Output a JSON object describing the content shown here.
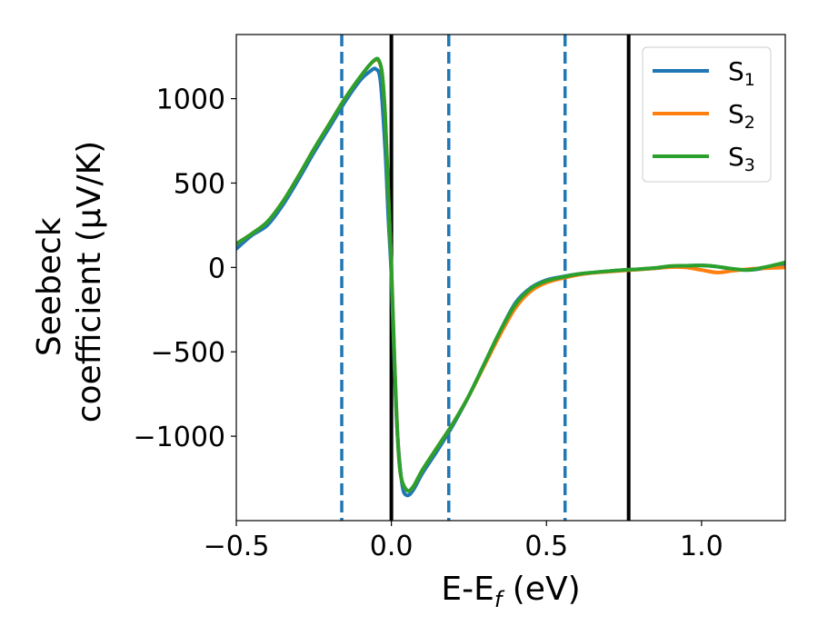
{
  "chart_data": {
    "type": "line",
    "xlabel_main": "E-E",
    "xlabel_sub": "f",
    "xlabel_unit": " (eV)",
    "ylabel_line1": "Seebeck",
    "ylabel_line2": "coefficient  (μV/K)",
    "xlim": [
      -0.5,
      1.27
    ],
    "ylim": [
      -1500,
      1380
    ],
    "x_ticks": [
      -0.5,
      0.0,
      0.5,
      1.0
    ],
    "x_tick_labels": [
      "−0.5",
      "0.0",
      "0.5",
      "1.0"
    ],
    "y_ticks": [
      1000,
      500,
      0,
      -500,
      -1000
    ],
    "y_tick_labels": [
      "1000",
      "500",
      "0",
      "−500",
      "−1000"
    ],
    "grid": false,
    "legend_position": "top-right",
    "vertical_lines": [
      {
        "x": -0.16,
        "style": "dashed",
        "color": "#1f77b4"
      },
      {
        "x": 0.0,
        "style": "solid",
        "color": "#000000"
      },
      {
        "x": 0.185,
        "style": "dashed",
        "color": "#1f77b4"
      },
      {
        "x": 0.56,
        "style": "dashed",
        "color": "#1f77b4"
      },
      {
        "x": 0.765,
        "style": "solid",
        "color": "#000000"
      }
    ],
    "series": [
      {
        "name": "S",
        "subscript": "1",
        "color": "#1f77b4",
        "x": [
          -0.5,
          -0.45,
          -0.4,
          -0.35,
          -0.3,
          -0.25,
          -0.2,
          -0.15,
          -0.1,
          -0.07,
          -0.05,
          -0.035,
          -0.02,
          -0.01,
          0.0,
          0.01,
          0.02,
          0.035,
          0.05,
          0.07,
          0.1,
          0.15,
          0.2,
          0.25,
          0.3,
          0.35,
          0.4,
          0.45,
          0.5,
          0.55,
          0.6,
          0.65,
          0.7,
          0.75,
          0.8,
          0.85,
          0.9,
          0.95,
          1.0,
          1.05,
          1.1,
          1.15,
          1.2,
          1.27
        ],
        "y": [
          110,
          190,
          250,
          370,
          520,
          680,
          830,
          980,
          1110,
          1160,
          1175,
          1100,
          700,
          300,
          -50,
          -600,
          -1000,
          -1290,
          -1350,
          -1320,
          -1220,
          -1080,
          -930,
          -760,
          -570,
          -380,
          -210,
          -120,
          -75,
          -55,
          -40,
          -30,
          -22,
          -15,
          -10,
          -5,
          5,
          10,
          12,
          5,
          -10,
          -15,
          -5,
          20
        ]
      },
      {
        "name": "S",
        "subscript": "2",
        "color": "#ff7f0e",
        "x": [
          -0.5,
          -0.45,
          -0.4,
          -0.35,
          -0.3,
          -0.25,
          -0.2,
          -0.15,
          -0.1,
          -0.07,
          -0.05,
          -0.04,
          -0.03,
          -0.02,
          -0.01,
          0.0,
          0.01,
          0.02,
          0.03,
          0.05,
          0.07,
          0.1,
          0.15,
          0.2,
          0.25,
          0.3,
          0.35,
          0.4,
          0.45,
          0.5,
          0.55,
          0.6,
          0.65,
          0.7,
          0.75,
          0.8,
          0.85,
          0.9,
          0.95,
          1.0,
          1.05,
          1.1,
          1.15,
          1.2,
          1.27
        ],
        "y": [
          140,
          200,
          270,
          390,
          540,
          700,
          850,
          1000,
          1130,
          1200,
          1230,
          1220,
          1150,
          900,
          450,
          0,
          -550,
          -1000,
          -1230,
          -1320,
          -1300,
          -1200,
          -1060,
          -920,
          -760,
          -580,
          -400,
          -240,
          -140,
          -90,
          -65,
          -45,
          -32,
          -25,
          -18,
          -12,
          -5,
          2,
          0,
          -15,
          -30,
          -20,
          -10,
          -5,
          0
        ]
      },
      {
        "name": "S",
        "subscript": "3",
        "color": "#2ca02c",
        "x": [
          -0.5,
          -0.45,
          -0.4,
          -0.35,
          -0.3,
          -0.25,
          -0.2,
          -0.15,
          -0.1,
          -0.07,
          -0.05,
          -0.04,
          -0.03,
          -0.02,
          -0.01,
          0.0,
          0.01,
          0.02,
          0.03,
          0.05,
          0.07,
          0.1,
          0.15,
          0.2,
          0.25,
          0.3,
          0.35,
          0.4,
          0.45,
          0.5,
          0.55,
          0.6,
          0.65,
          0.7,
          0.75,
          0.8,
          0.85,
          0.9,
          0.95,
          1.0,
          1.05,
          1.1,
          1.15,
          1.2,
          1.27
        ],
        "y": [
          140,
          200,
          270,
          390,
          540,
          700,
          850,
          1000,
          1130,
          1200,
          1235,
          1225,
          1150,
          900,
          450,
          0,
          -550,
          -1000,
          -1230,
          -1320,
          -1300,
          -1200,
          -1060,
          -920,
          -760,
          -570,
          -380,
          -220,
          -125,
          -80,
          -58,
          -40,
          -30,
          -22,
          -15,
          -10,
          -3,
          8,
          10,
          12,
          5,
          -8,
          -15,
          0,
          30
        ]
      }
    ]
  }
}
